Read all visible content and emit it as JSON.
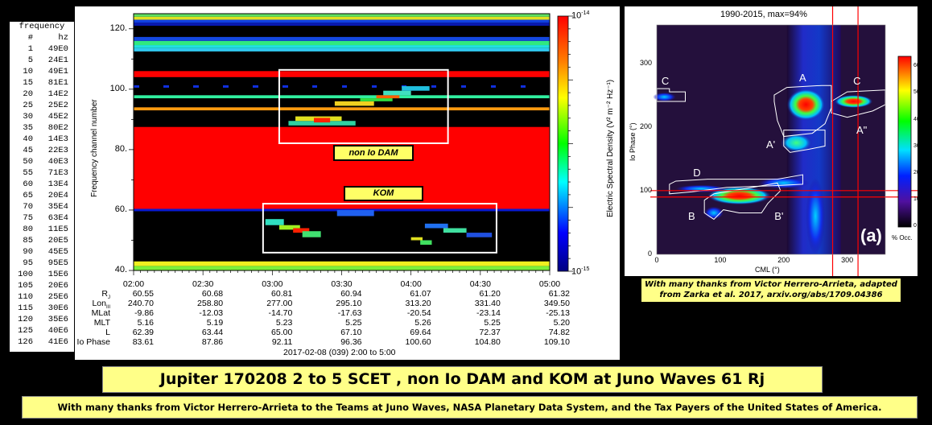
{
  "frequency_table": {
    "title": "frequency",
    "col_num": "#",
    "col_hz": "hz",
    "rows": [
      [
        "1",
        "49E0"
      ],
      [
        "5",
        "24E1"
      ],
      [
        "10",
        "49E1"
      ],
      [
        "15",
        "81E1"
      ],
      [
        "20",
        "14E2"
      ],
      [
        "25",
        "25E2"
      ],
      [
        "30",
        "45E2"
      ],
      [
        "35",
        "80E2"
      ],
      [
        "40",
        "14E3"
      ],
      [
        "45",
        "22E3"
      ],
      [
        "50",
        "40E3"
      ],
      [
        "55",
        "71E3"
      ],
      [
        "60",
        "13E4"
      ],
      [
        "65",
        "20E4"
      ],
      [
        "70",
        "35E4"
      ],
      [
        "75",
        "63E4"
      ],
      [
        "80",
        "11E5"
      ],
      [
        "85",
        "20E5"
      ],
      [
        "90",
        "45E5"
      ],
      [
        "95",
        "95E5"
      ],
      [
        "100",
        "15E6"
      ],
      [
        "105",
        "20E6"
      ],
      [
        "110",
        "25E6"
      ],
      [
        "115",
        "30E6"
      ],
      [
        "120",
        "35E6"
      ],
      [
        "125",
        "40E6"
      ],
      [
        "126",
        "41E6"
      ]
    ]
  },
  "chart_data": [
    {
      "type": "heatmap",
      "ylabel": "Frequency channel number",
      "ylim": [
        40,
        125
      ],
      "yticks": [
        "40.",
        "60.",
        "80.",
        "100.",
        "120."
      ],
      "ytick_values": [
        40,
        60,
        80,
        100,
        120
      ],
      "xlim": [
        "02:00",
        "05:00"
      ],
      "xticks": [
        "02:00",
        "02:30",
        "03:00",
        "03:30",
        "04:00",
        "04:30",
        "05:00"
      ],
      "colorbar": {
        "label": "Electric Spectral Density (V² m⁻² Hz⁻¹)",
        "max_label": "10",
        "max_exp": "-14",
        "min_label": "10",
        "min_exp": "-15"
      },
      "bands": [
        {
          "ch": [
            40,
            41.5
          ],
          "color": "#7cf03a"
        },
        {
          "ch": [
            41.5,
            43
          ],
          "color": "#f0f020"
        },
        {
          "ch": [
            60,
            87.5
          ],
          "color": "#ff0000"
        },
        {
          "ch": [
            59.6,
            60.4
          ],
          "color": "#0a1ad0"
        },
        {
          "ch": [
            93,
            94
          ],
          "color": "#ff9a10"
        },
        {
          "ch": [
            97,
            98
          ],
          "color": "#30f0a0"
        },
        {
          "ch": [
            104,
            106
          ],
          "color": "#ff0000"
        },
        {
          "ch": [
            112.5,
            113.6
          ],
          "color": "#30c8f0"
        },
        {
          "ch": [
            113.6,
            114.6
          ],
          "color": "#20e0e0"
        },
        {
          "ch": [
            114.6,
            116
          ],
          "color": "#30e880"
        },
        {
          "ch": [
            116,
            117.3
          ],
          "color": "#1448e0"
        },
        {
          "ch": [
            121,
            122
          ],
          "color": "#0818b0"
        },
        {
          "ch": [
            122,
            123
          ],
          "color": "#1040e0"
        },
        {
          "ch": [
            123,
            124
          ],
          "color": "#e0e020"
        },
        {
          "ch": [
            124,
            125
          ],
          "color": "#60e060"
        }
      ],
      "bursts": [
        {
          "t": [
            "03:07",
            "03:36"
          ],
          "ch": [
            88,
            89.5
          ],
          "color": "#30d0a0"
        },
        {
          "t": [
            "03:10",
            "03:30"
          ],
          "ch": [
            89.5,
            91
          ],
          "color": "#e0e020"
        },
        {
          "t": [
            "03:18",
            "03:25"
          ],
          "ch": [
            89,
            90.5
          ],
          "color": "#ff2000"
        },
        {
          "t": [
            "03:27",
            "03:44"
          ],
          "ch": [
            94.5,
            96
          ],
          "color": "#f0d020"
        },
        {
          "t": [
            "03:38",
            "03:52"
          ],
          "ch": [
            96,
            97
          ],
          "color": "#30e040"
        },
        {
          "t": [
            "03:45",
            "03:55"
          ],
          "ch": [
            97,
            98
          ],
          "color": "#ff6000"
        },
        {
          "t": [
            "03:48",
            "04:00"
          ],
          "ch": [
            98,
            99.5
          ],
          "color": "#40e0c0"
        },
        {
          "t": [
            "03:56",
            "04:08"
          ],
          "ch": [
            99.5,
            101
          ],
          "color": "#20c0e0"
        },
        {
          "t": [
            "02:57",
            "03:05"
          ],
          "ch": [
            55,
            57
          ],
          "color": "#30e0c0"
        },
        {
          "t": [
            "03:03",
            "03:12"
          ],
          "ch": [
            53.5,
            55
          ],
          "color": "#a0f020"
        },
        {
          "t": [
            "03:09",
            "03:16"
          ],
          "ch": [
            52.5,
            54
          ],
          "color": "#ff2000"
        },
        {
          "t": [
            "03:13",
            "03:21"
          ],
          "ch": [
            51,
            53
          ],
          "color": "#40e070"
        },
        {
          "t": [
            "03:28",
            "03:44"
          ],
          "ch": [
            58,
            60
          ],
          "color": "#2060f0"
        },
        {
          "t": [
            "04:00",
            "04:05"
          ],
          "ch": [
            50,
            51
          ],
          "color": "#e0e020"
        },
        {
          "t": [
            "04:04",
            "04:09"
          ],
          "ch": [
            48.5,
            50
          ],
          "color": "#40e060"
        },
        {
          "t": [
            "04:06",
            "04:16"
          ],
          "ch": [
            54,
            55.5
          ],
          "color": "#2070f0"
        },
        {
          "t": [
            "04:14",
            "04:24"
          ],
          "ch": [
            52.5,
            54
          ],
          "color": "#40e0a0"
        },
        {
          "t": [
            "04:24",
            "04:35"
          ],
          "ch": [
            51,
            52.5
          ],
          "color": "#2050e0"
        }
      ],
      "annotations": [
        {
          "label": "non Io DAM",
          "box_t": [
            "03:03",
            "04:16"
          ],
          "box_ch": [
            82.1,
            106.4
          ]
        },
        {
          "label": "KOM",
          "box_t": [
            "02:56",
            "04:37"
          ],
          "box_ch": [
            45.9,
            62.1
          ]
        }
      ],
      "ephemeris": {
        "rows": [
          {
            "label": "R",
            "sub": "J",
            "values": [
              "60.55",
              "60.68",
              "60.81",
              "60.94",
              "61.07",
              "61.20",
              "61.32"
            ]
          },
          {
            "label": "Lon",
            "sub": "III",
            "values": [
              "240.70",
              "258.80",
              "277.00",
              "295.10",
              "313.20",
              "331.40",
              "349.50"
            ]
          },
          {
            "label": "MLat",
            "sub": "",
            "values": [
              "-9.86",
              "-12.03",
              "-14.70",
              "-17.63",
              "-20.54",
              "-23.14",
              "-25.13"
            ]
          },
          {
            "label": "MLT",
            "sub": "",
            "values": [
              "5.16",
              "5.19",
              "5.23",
              "5.25",
              "5.26",
              "5.25",
              "5.20"
            ]
          },
          {
            "label": "L",
            "sub": "",
            "values": [
              "62.39",
              "63.44",
              "65.00",
              "67.10",
              "69.64",
              "72.37",
              "74.82"
            ]
          },
          {
            "label": "Io Phase",
            "sub": "",
            "values": [
              "83.61",
              "87.86",
              "92.11",
              "96.36",
              "100.60",
              "104.80",
              "109.10"
            ]
          }
        ],
        "date_label": "2017-02-08 (039) 2:00 to 5:00"
      }
    },
    {
      "type": "heatmap",
      "title": "1990-2015,  max=94%",
      "xlabel": "CML (°)",
      "ylabel": "Io Phase (°)",
      "xlim": [
        0,
        360
      ],
      "ylim": [
        0,
        360
      ],
      "xticks": [
        0,
        100,
        200,
        300
      ],
      "yticks": [
        0,
        100,
        200,
        300
      ],
      "colorbar": {
        "label": "% Occ.",
        "ticks": [
          0,
          10,
          20,
          30,
          40,
          50,
          60
        ],
        "max": 64
      },
      "panel_label": "(a)",
      "region_labels": [
        {
          "text": "C",
          "cml": 15,
          "phase": 272
        },
        {
          "text": "A",
          "cml": 232,
          "phase": 277
        },
        {
          "text": "C",
          "cml": 317,
          "phase": 272
        },
        {
          "text": "A\"",
          "cml": 322,
          "phase": 195
        },
        {
          "text": "A'",
          "cml": 180,
          "phase": 172
        },
        {
          "text": "D",
          "cml": 65,
          "phase": 127
        },
        {
          "text": "B",
          "cml": 57,
          "phase": 60
        },
        {
          "text": "B'",
          "cml": 193,
          "phase": 60
        }
      ],
      "markers": {
        "cml": [
          277,
          317
        ],
        "io_phase": [
          90,
          100
        ],
        "color": "#ff0000"
      }
    }
  ],
  "caption": {
    "line1": "With many thanks from Victor Herrero-Arrieta, adapted",
    "line2": "from Zarka et al. 2017, arxiv.org/abs/1709.04386"
  },
  "title": "Jupiter 170208 2 to 5 SCET , non Io DAM and KOM at Juno Waves 61 Rj",
  "credit": "With many thanks from Victor Herrero-Arrieta to the Teams at Juno Waves, NASA Planetary Data System, and the Tax Payers of the United States of America."
}
